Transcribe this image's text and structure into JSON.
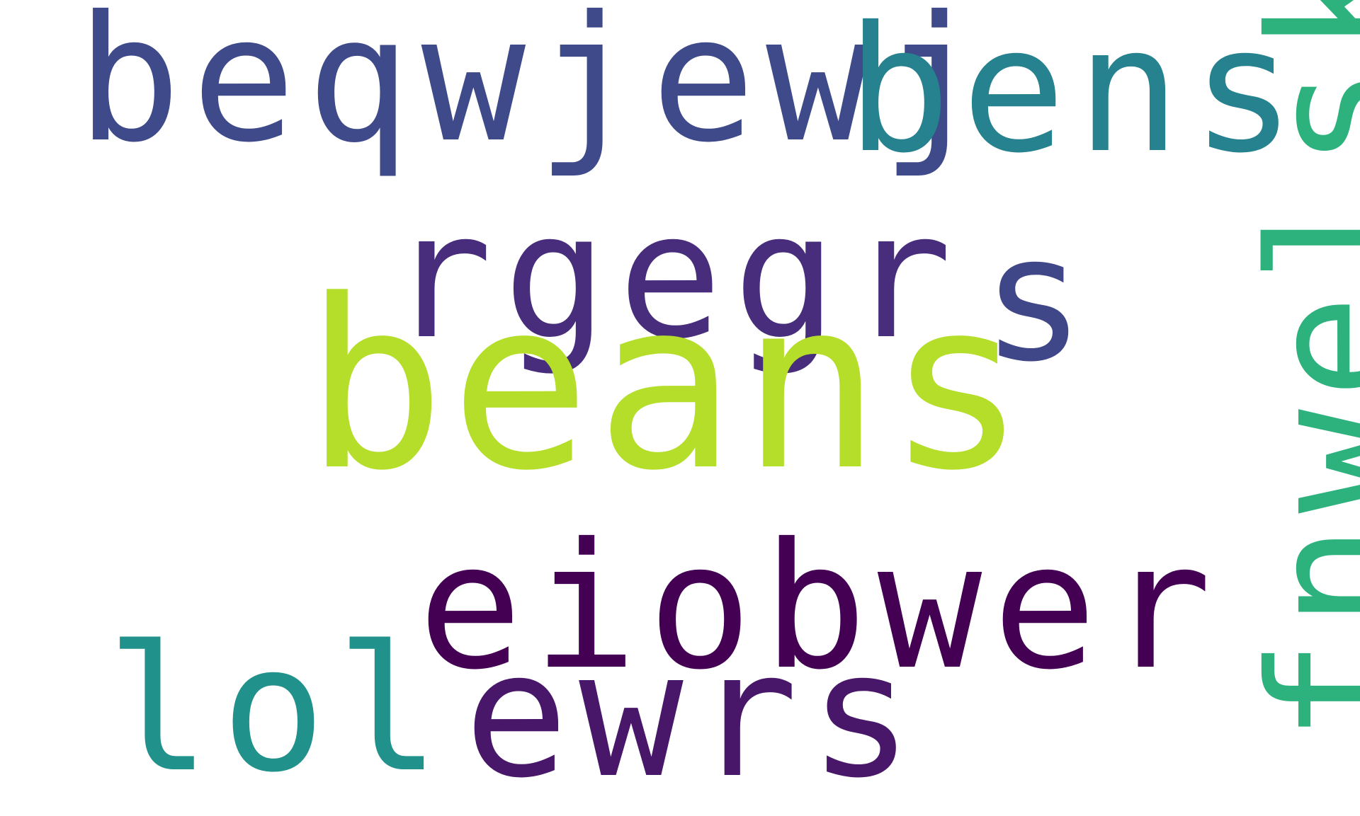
{
  "words": [
    {
      "id": "beqwjewj",
      "text": "beqwjewj",
      "color": "#3e4a89"
    },
    {
      "id": "bens",
      "text": "bens",
      "color": "#26828e"
    },
    {
      "id": "rgegr",
      "text": "rgegr",
      "color": "#472d7b"
    },
    {
      "id": "s",
      "text": "s",
      "color": "#3f4788"
    },
    {
      "id": "beans",
      "text": "beans",
      "color": "#b5de2b"
    },
    {
      "id": "eiobwer",
      "text": "eiobwer",
      "color": "#440154"
    },
    {
      "id": "lol",
      "text": "lol",
      "color": "#21918c"
    },
    {
      "id": "ewrs",
      "text": "ewrs",
      "color": "#481769"
    },
    {
      "id": "fnwelskf",
      "text": "fnwelskf",
      "color": "#2db27d"
    }
  ]
}
